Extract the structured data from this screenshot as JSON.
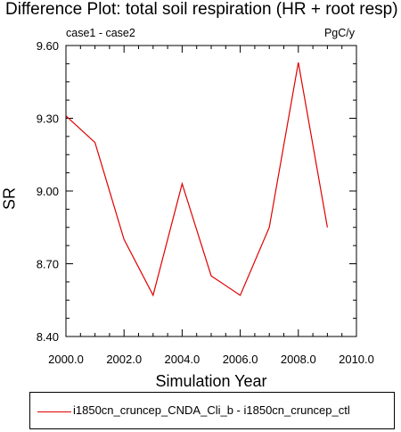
{
  "chart_data": {
    "type": "line",
    "title": "Difference Plot: total soil respiration (HR + root resp)",
    "subtitle_left": "case1 - case2",
    "subtitle_right": "PgC/y",
    "xlabel": "Simulation Year",
    "ylabel": "SR",
    "xlim": [
      2000,
      2010
    ],
    "ylim": [
      8.4,
      9.6
    ],
    "x_ticks": [
      "2000.0",
      "2002.0",
      "2004.0",
      "2006.0",
      "2008.0",
      "2010.0"
    ],
    "y_ticks": [
      "8.40",
      "8.70",
      "9.00",
      "9.30",
      "9.60"
    ],
    "grid": false,
    "legend_position": "bottom",
    "series": [
      {
        "name": "i1850cn_cruncep_CNDA_Cli_b - i1850cn_cruncep_ctl",
        "color": "#e00000",
        "x": [
          2000,
          2001,
          2002,
          2003,
          2004,
          2005,
          2006,
          2007,
          2008,
          2009
        ],
        "y": [
          9.31,
          9.2,
          8.8,
          8.57,
          9.03,
          8.65,
          8.57,
          8.85,
          9.53,
          8.85
        ]
      }
    ]
  }
}
